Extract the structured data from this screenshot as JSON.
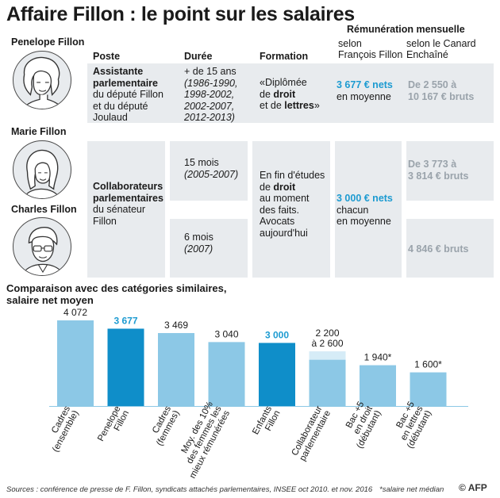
{
  "title": "Affaire Fillon : le point sur les salaires",
  "table": {
    "remuneration_header": "Rémunération mensuelle",
    "col_poste": "Poste",
    "col_duree": "Durée",
    "col_formation": "Formation",
    "col_selon_ff_1": "selon",
    "col_selon_ff_2": "François Fillon",
    "col_selon_canard_1": "selon le Canard",
    "col_selon_canard_2": "Enchaîné",
    "penelope": {
      "name": "Penelope Fillon",
      "poste_1": "Assistante",
      "poste_2": "parlementaire",
      "poste_3": "du député Fillon",
      "poste_4": "et du député",
      "poste_5": "Joulaud",
      "duree_1": "+ de 15 ans",
      "duree_2": "(1986-1990,",
      "duree_3": "1998-2002,",
      "duree_4": "2002-2007,",
      "duree_5": "2012-2013)",
      "formation_1": "«Diplômée",
      "formation_2a": "de ",
      "formation_2b": "droit",
      "formation_3a": "et de ",
      "formation_3b": "lettres",
      "formation_3c": "»",
      "ff_value": "3 677 € nets",
      "ff_sub": "en moyenne",
      "canard_1": "De 2 550 à",
      "canard_2": "10 167 € bruts"
    },
    "marie": {
      "name": "Marie Fillon",
      "duree_1": "15 mois",
      "duree_2": "(2005-2007)",
      "canard_1": "De 3 773 à",
      "canard_2": "3 814 € bruts"
    },
    "charles": {
      "name": "Charles Fillon",
      "duree_1": "6 mois",
      "duree_2": "(2007)",
      "canard_1": "4 846 € bruts"
    },
    "shared": {
      "poste_1": "Collaborateurs",
      "poste_2": "parlementaires",
      "poste_3": "du sénateur",
      "poste_4": "Fillon",
      "formation_1": "En fin d'études",
      "formation_2a": "de ",
      "formation_2b": "droit",
      "formation_3": "au moment",
      "formation_4": "des faits.",
      "formation_5": "Avocats",
      "formation_6": "aujourd'hui",
      "ff_value": "3 000 € nets",
      "ff_sub_1": "chacun",
      "ff_sub_2": "en moyenne"
    }
  },
  "chart_title_1": "Comparaison avec des catégories similaires,",
  "chart_title_2": "salaire net moyen",
  "chart_data": {
    "type": "bar",
    "title": "Comparaison avec des catégories similaires, salaire net moyen",
    "categories": [
      [
        "Cadres",
        "(ensemble)"
      ],
      [
        "Penelope",
        "Fillon"
      ],
      [
        "Cadres",
        "(femmes)"
      ],
      [
        "Moy. des 10%",
        "des femmes les",
        "mieux rémunérées"
      ],
      [
        "Enfants",
        "Fillon"
      ],
      [
        "Collaborateur",
        "parlementaire"
      ],
      [
        "Bac +5",
        "en droit",
        "(débutant)"
      ],
      [
        "Bac +5",
        "en lettres",
        "(débutant)"
      ]
    ],
    "values": [
      4072,
      3677,
      3469,
      3040,
      3000,
      2600,
      1940,
      1600
    ],
    "range_low": [
      null,
      null,
      null,
      null,
      null,
      2200,
      null,
      null
    ],
    "value_labels": [
      [
        "4 072"
      ],
      [
        "3 677"
      ],
      [
        "3 469"
      ],
      [
        "3 040"
      ],
      [
        "3 000"
      ],
      [
        "2 200",
        "à 2 600"
      ],
      [
        "1 940*"
      ],
      [
        "1 600*"
      ]
    ],
    "highlight": [
      false,
      true,
      false,
      false,
      true,
      false,
      false,
      false
    ],
    "ylim": [
      0,
      4072
    ],
    "colors": {
      "normal": "#8cc8e6",
      "highlight": "#0f8ec9",
      "range_top": "#d6ecf7",
      "label_highlight": "#1d9bd1"
    }
  },
  "sources": "Sources : conférence de presse de F. Fillon, syndicats attachés parlementaires, INSEE oct 2010. et nov. 2016",
  "footnote": "*salaire net médian",
  "logo": "© AFP"
}
